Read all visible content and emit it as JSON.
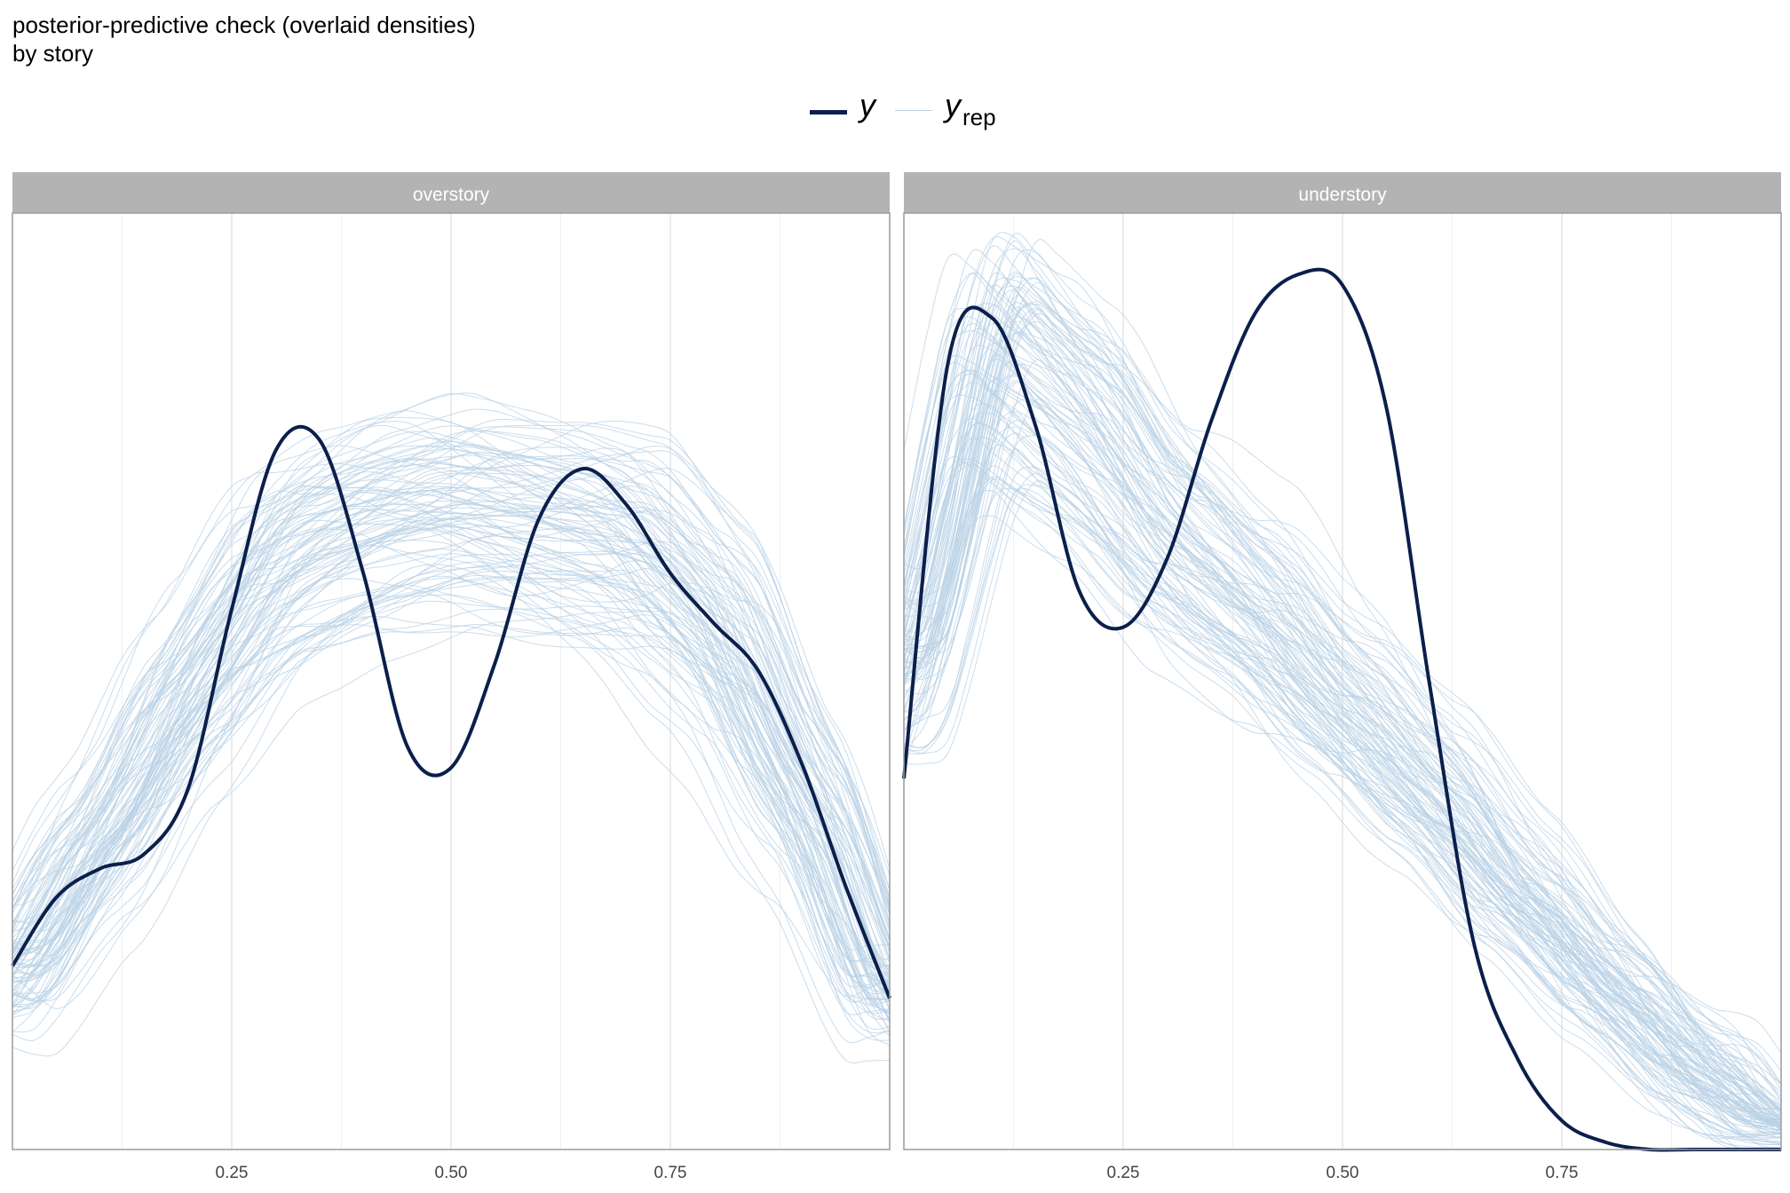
{
  "title": {
    "line1": "posterior-predictive check (overlaid densities)",
    "line2": "by story"
  },
  "legend": {
    "items": [
      {
        "label": "y",
        "sub": "",
        "color": "#0b1f4b"
      },
      {
        "label": "y",
        "sub": "rep",
        "color": "#b9d1e6"
      }
    ]
  },
  "colors": {
    "y": "#0b1f4b",
    "yrep": "#b9d1e6",
    "strip": "#b3b3b3",
    "grid": "#e6e6e6",
    "panel_border": "#9a9a9a"
  },
  "chart_data": [
    {
      "type": "line",
      "panel": "overstory",
      "xlim": [
        0,
        1
      ],
      "ylim": [
        0,
        2.6
      ],
      "x_ticks": [
        0.25,
        0.5,
        0.75
      ],
      "x_tick_labels": [
        "0.25",
        "0.50",
        "0.75"
      ],
      "grid": true,
      "series": [
        {
          "name": "y",
          "x": [
            0.0,
            0.05,
            0.1,
            0.15,
            0.2,
            0.25,
            0.3,
            0.35,
            0.4,
            0.45,
            0.5,
            0.55,
            0.6,
            0.65,
            0.7,
            0.75,
            0.8,
            0.85,
            0.9,
            0.95,
            1.0
          ],
          "values": [
            0.51,
            0.7,
            0.78,
            0.82,
            1.0,
            1.5,
            1.94,
            1.97,
            1.6,
            1.12,
            1.06,
            1.35,
            1.75,
            1.89,
            1.79,
            1.6,
            1.46,
            1.33,
            1.07,
            0.73,
            0.42
          ]
        }
      ],
      "replicates": {
        "name": "yrep",
        "count": 100,
        "x": [
          0.0,
          0.1,
          0.2,
          0.3,
          0.4,
          0.5,
          0.6,
          0.7,
          0.8,
          0.9,
          1.0
        ],
        "typical_values": [
          0.48,
          0.85,
          1.25,
          1.58,
          1.7,
          1.76,
          1.72,
          1.66,
          1.42,
          0.95,
          0.4
        ]
      }
    },
    {
      "type": "line",
      "panel": "understory",
      "xlim": [
        0,
        1
      ],
      "ylim": [
        0,
        2.6
      ],
      "x_ticks": [
        0.25,
        0.5,
        0.75
      ],
      "x_tick_labels": [
        "0.25",
        "0.50",
        "0.75"
      ],
      "grid": true,
      "series": [
        {
          "name": "y",
          "x": [
            0.0,
            0.05,
            0.1,
            0.15,
            0.2,
            0.25,
            0.3,
            0.35,
            0.4,
            0.45,
            0.5,
            0.55,
            0.6,
            0.65,
            0.7,
            0.75,
            0.8,
            0.85,
            0.9,
            0.95,
            1.0
          ],
          "values": [
            1.03,
            2.18,
            2.31,
            2.01,
            1.55,
            1.45,
            1.64,
            2.02,
            2.32,
            2.43,
            2.4,
            2.06,
            1.28,
            0.57,
            0.25,
            0.08,
            0.02,
            0.0,
            0.0,
            0.0,
            0.0
          ]
        }
      ],
      "replicates": {
        "name": "yrep",
        "count": 100,
        "x": [
          0.0,
          0.1,
          0.2,
          0.3,
          0.4,
          0.5,
          0.6,
          0.7,
          0.8,
          0.9,
          1.0
        ],
        "typical_values": [
          1.3,
          2.2,
          2.0,
          1.68,
          1.48,
          1.22,
          0.98,
          0.7,
          0.45,
          0.22,
          0.06
        ]
      }
    }
  ]
}
